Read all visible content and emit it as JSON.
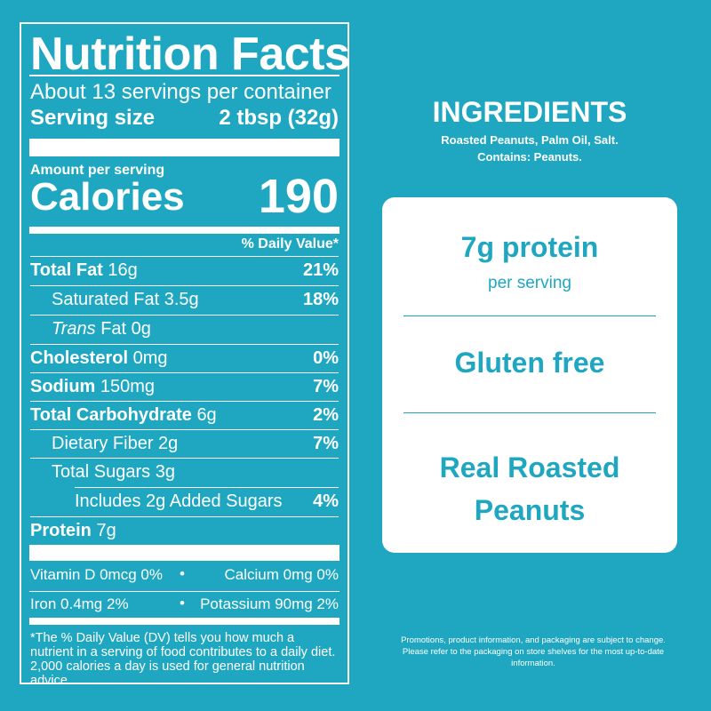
{
  "nutrition": {
    "title": "Nutrition Facts",
    "servings": "About 13 servings per container",
    "serving_size_label": "Serving size",
    "serving_size_value": "2 tbsp (32g)",
    "amount_per_serving": "Amount per serving",
    "calories_label": "Calories",
    "calories_value": "190",
    "dv_header": "% Daily Value*",
    "rows": [
      {
        "name": "Total Fat",
        "amount": "16g",
        "dv": "21%"
      },
      {
        "name": "Saturated Fat 3.5g",
        "amount": "",
        "dv": "18%"
      },
      {
        "name": "Trans",
        "amount": " Fat 0g",
        "dv": ""
      },
      {
        "name": "Cholesterol",
        "amount": "0mg",
        "dv": "0%"
      },
      {
        "name": "Sodium",
        "amount": "150mg",
        "dv": "7%"
      },
      {
        "name": "Total Carbohydrate",
        "amount": "6g",
        "dv": "2%"
      },
      {
        "name": "Dietary Fiber 2g",
        "amount": "",
        "dv": "7%"
      },
      {
        "name": "Total Sugars 3g",
        "amount": "",
        "dv": ""
      },
      {
        "name": "Includes 2g Added Sugars",
        "amount": "",
        "dv": "4%"
      },
      {
        "name": "Protein",
        "amount": "7g",
        "dv": ""
      }
    ],
    "vitamin_d": "Vitamin D 0mcg 0%",
    "calcium": "Calcium 0mg 0%",
    "iron": "Iron 0.4mg 2%",
    "potassium": "Potassium 90mg 2%",
    "bullet": "•",
    "footnote": "*The % Daily Value (DV) tells you how much a nutrient in a serving of food contributes to a daily diet. 2,000 calories a day is used for general nutrition advice."
  },
  "ingredients": {
    "title": "INGREDIENTS",
    "list": "Roasted Peanuts, Palm Oil, Salt.",
    "contains": "Contains: Peanuts."
  },
  "card": {
    "protein": "7g protein",
    "protein_sub": "per serving",
    "gluten": "Gluten free",
    "roasted_1": "Real Roasted",
    "roasted_2": "Peanuts"
  },
  "disclaimer": "Promotions, product information, and packaging are subject to change. Please refer to the packaging on store shelves for the most up-to-date information.",
  "colors": {
    "background": "#1fa7c1",
    "card": "#ffffff"
  }
}
